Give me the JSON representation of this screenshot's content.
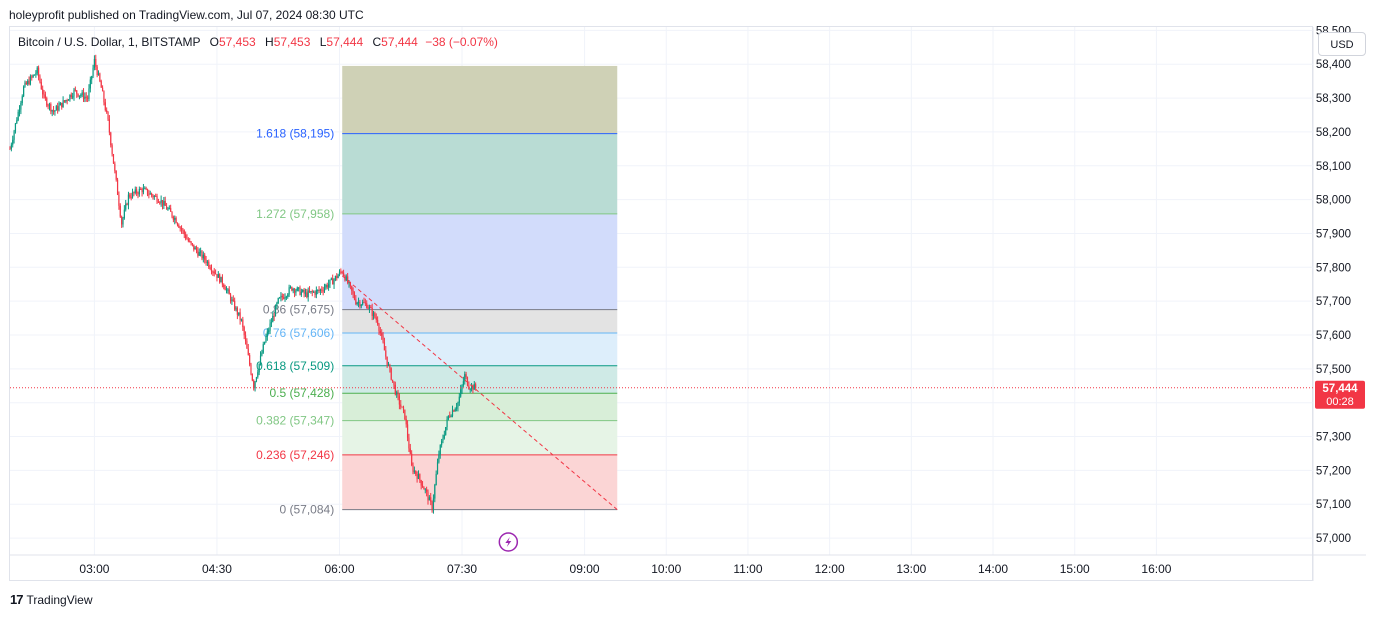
{
  "header": {
    "published_by": "holeyprofit published on TradingView.com, Jul 07, 2024 08:30 UTC"
  },
  "legend": {
    "symbol": "Bitcoin / U.S. Dollar, 1, BITSTAMP",
    "ohlc": [
      {
        "label": "O",
        "value": "57,453"
      },
      {
        "label": "H",
        "value": "57,453"
      },
      {
        "label": "L",
        "value": "57,444"
      },
      {
        "label": "C",
        "value": "57,444"
      }
    ],
    "change": "−38 (−0.07%)"
  },
  "currency_button": "USD",
  "price_tag": {
    "price": "57,444",
    "countdown": "00:28",
    "color": "#f23645"
  },
  "footer": {
    "brand": "TradingView"
  },
  "chart_data": {
    "type": "candlestick",
    "symbol": "BTCUSD",
    "ylim": [
      56950,
      58510
    ],
    "y_ticks": [
      "57,000",
      "57,100",
      "57,200",
      "57,300",
      "57,400",
      "57,500",
      "57,600",
      "57,700",
      "57,800",
      "57,900",
      "58,000",
      "58,100",
      "58,200",
      "58,300",
      "58,400",
      "58,500"
    ],
    "x_ticks": [
      "03:00",
      "04:30",
      "06:00",
      "07:30",
      "09:00",
      "10:00",
      "11:00",
      "12:00",
      "13:00",
      "14:00",
      "15:00",
      "16:00"
    ],
    "x_tick_minutes": [
      180,
      270,
      360,
      450,
      540,
      600,
      660,
      720,
      780,
      840,
      900,
      960
    ],
    "x_range_minutes": [
      118,
      1075
    ],
    "last_price": 57444,
    "price_series": {
      "start_minute": 118,
      "step_minutes": 1,
      "anchors": [
        [
          118,
          58150
        ],
        [
          128,
          58330
        ],
        [
          138,
          58380
        ],
        [
          143,
          58300
        ],
        [
          150,
          58260
        ],
        [
          158,
          58290
        ],
        [
          165,
          58320
        ],
        [
          175,
          58300
        ],
        [
          180,
          58410
        ],
        [
          185,
          58330
        ],
        [
          190,
          58230
        ],
        [
          195,
          58080
        ],
        [
          200,
          57930
        ],
        [
          205,
          58010
        ],
        [
          215,
          58030
        ],
        [
          228,
          58000
        ],
        [
          240,
          57940
        ],
        [
          250,
          57870
        ],
        [
          262,
          57820
        ],
        [
          275,
          57750
        ],
        [
          288,
          57640
        ],
        [
          297,
          57450
        ],
        [
          305,
          57580
        ],
        [
          315,
          57700
        ],
        [
          325,
          57740
        ],
        [
          335,
          57720
        ],
        [
          345,
          57730
        ],
        [
          355,
          57760
        ],
        [
          362,
          57790
        ],
        [
          372,
          57700
        ],
        [
          380,
          57690
        ],
        [
          388,
          57640
        ],
        [
          395,
          57520
        ],
        [
          402,
          57420
        ],
        [
          408,
          57360
        ],
        [
          413,
          57210
        ],
        [
          418,
          57180
        ],
        [
          423,
          57140
        ],
        [
          428,
          57090
        ],
        [
          433,
          57250
        ],
        [
          440,
          57360
        ],
        [
          447,
          57400
        ],
        [
          452,
          57480
        ],
        [
          455,
          57450
        ],
        [
          460,
          57444
        ]
      ]
    },
    "fibonacci": {
      "start_minute": 362,
      "end_minute": 564,
      "levels": [
        {
          "label": "0 (57,084)",
          "level": 0,
          "price": 57084,
          "color": "#787b86",
          "fill": "#fbd5d5"
        },
        {
          "label": "0.236 (57,246)",
          "level": 0.236,
          "price": 57246,
          "color": "#f23645",
          "fill": "#e6f4e6"
        },
        {
          "label": "0.382 (57,347)",
          "level": 0.382,
          "price": 57347,
          "color": "#81c784",
          "fill": "#d8eed8"
        },
        {
          "label": "0.5 (57,428)",
          "level": 0.5,
          "price": 57428,
          "color": "#4caf50",
          "fill": "#cfeae6"
        },
        {
          "label": "0.618 (57,509)",
          "level": 0.618,
          "price": 57509,
          "color": "#089981",
          "fill": "#ddeefb"
        },
        {
          "label": "0.76 (57,606)",
          "level": 0.76,
          "price": 57606,
          "color": "#64b5f6",
          "fill": "#e3e3e3"
        },
        {
          "label": "0.86 (57,675)",
          "level": 0.86,
          "price": 57675,
          "color": "#787b86",
          "fill": "#d2dcfb"
        },
        {
          "label": "1.272 (57,958)",
          "level": 1.272,
          "price": 57958,
          "color": "#81c784",
          "fill": "#b9dcd4"
        },
        {
          "label": "1.618 (58,195)",
          "level": 1.618,
          "price": 58195,
          "color": "#2962ff",
          "fill": "#cfd1b6"
        }
      ],
      "top_price": 58395
    },
    "trend_line": {
      "from": [
        362,
        57775
      ],
      "to": [
        564,
        57084
      ],
      "color": "#f23645"
    },
    "current_price_line": {
      "price": 57444,
      "color": "#f23645"
    },
    "event_marker": {
      "minute": 484,
      "icon": "lightning-icon",
      "color": "#9c27b0"
    },
    "grid": true
  }
}
